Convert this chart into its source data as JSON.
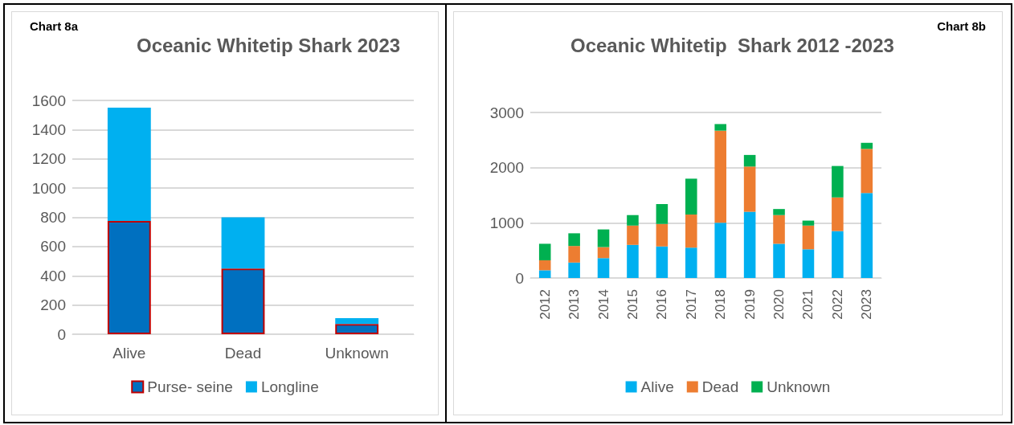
{
  "chart_data": [
    {
      "type": "bar",
      "title": "Oceanic Whitetip Shark 2023",
      "annotations": [
        "Chart 8a"
      ],
      "categories": [
        "Alive",
        "Dead",
        "Unknown"
      ],
      "stacked": true,
      "series": [
        {
          "name": "Purse- seine",
          "color": "#0070c0",
          "values": [
            775,
            450,
            70
          ]
        },
        {
          "name": "Longline",
          "color": "#00b0f0",
          "values": [
            775,
            350,
            40
          ]
        }
      ],
      "ylim": [
        0,
        1600
      ],
      "yticks": [
        0,
        200,
        400,
        600,
        800,
        1000,
        1200,
        1400,
        1600
      ],
      "grid": "y",
      "legend": "bottom"
    },
    {
      "type": "bar",
      "title": "Oceanic Whitetip  Shark 2012 -2023",
      "annotations": [
        "Chart 8b"
      ],
      "categories": [
        "2012",
        "2013",
        "2014",
        "2015",
        "2016",
        "2017",
        "2018",
        "2019",
        "2020",
        "2021",
        "2022",
        "2023"
      ],
      "stacked": true,
      "series": [
        {
          "name": "Alive",
          "color": "#00b0f0",
          "values": [
            140,
            280,
            360,
            600,
            570,
            550,
            1000,
            1200,
            620,
            520,
            850,
            1540
          ]
        },
        {
          "name": "Dead",
          "color": "#ed7d31",
          "values": [
            180,
            300,
            200,
            350,
            410,
            600,
            1670,
            820,
            520,
            430,
            610,
            800
          ]
        },
        {
          "name": "Unknown",
          "color": "#00b050",
          "values": [
            300,
            230,
            320,
            190,
            360,
            650,
            120,
            210,
            110,
            90,
            570,
            110
          ]
        }
      ],
      "ylim": [
        0,
        3000
      ],
      "yticks": [
        0,
        1000,
        2000,
        3000
      ],
      "grid": "y",
      "legend": "bottom"
    }
  ]
}
